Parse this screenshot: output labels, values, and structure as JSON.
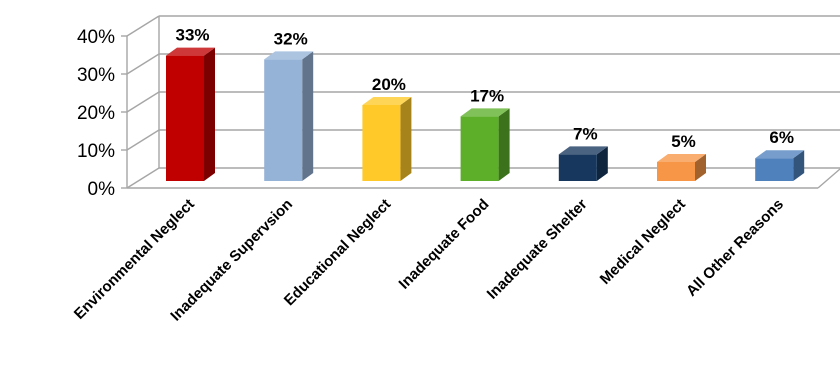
{
  "chart_data": {
    "type": "bar",
    "title": "",
    "xlabel": "",
    "ylabel": "",
    "categories": [
      "Environmental Neglect",
      "Inadequate Supervsion",
      "Educational Neglect",
      "Inadequate Food",
      "Inadequate Shelter",
      "Medical Neglect",
      "All Other Reasons"
    ],
    "values": [
      33,
      32,
      20,
      17,
      7,
      5,
      6
    ],
    "data_labels": [
      "33%",
      "32%",
      "20%",
      "17%",
      "7%",
      "5%",
      "6%"
    ],
    "yticks": [
      0,
      10,
      20,
      30,
      40
    ],
    "ytick_labels": [
      "0%",
      "10%",
      "20%",
      "30%",
      "40%"
    ],
    "ylim": [
      0,
      40
    ],
    "grid": true,
    "legend": "none",
    "bar_style": "3d",
    "colors": [
      "#c00000",
      "#95b3d7",
      "#ffc929",
      "#5daf2a",
      "#17375e",
      "#f79646",
      "#4f81bd"
    ]
  }
}
